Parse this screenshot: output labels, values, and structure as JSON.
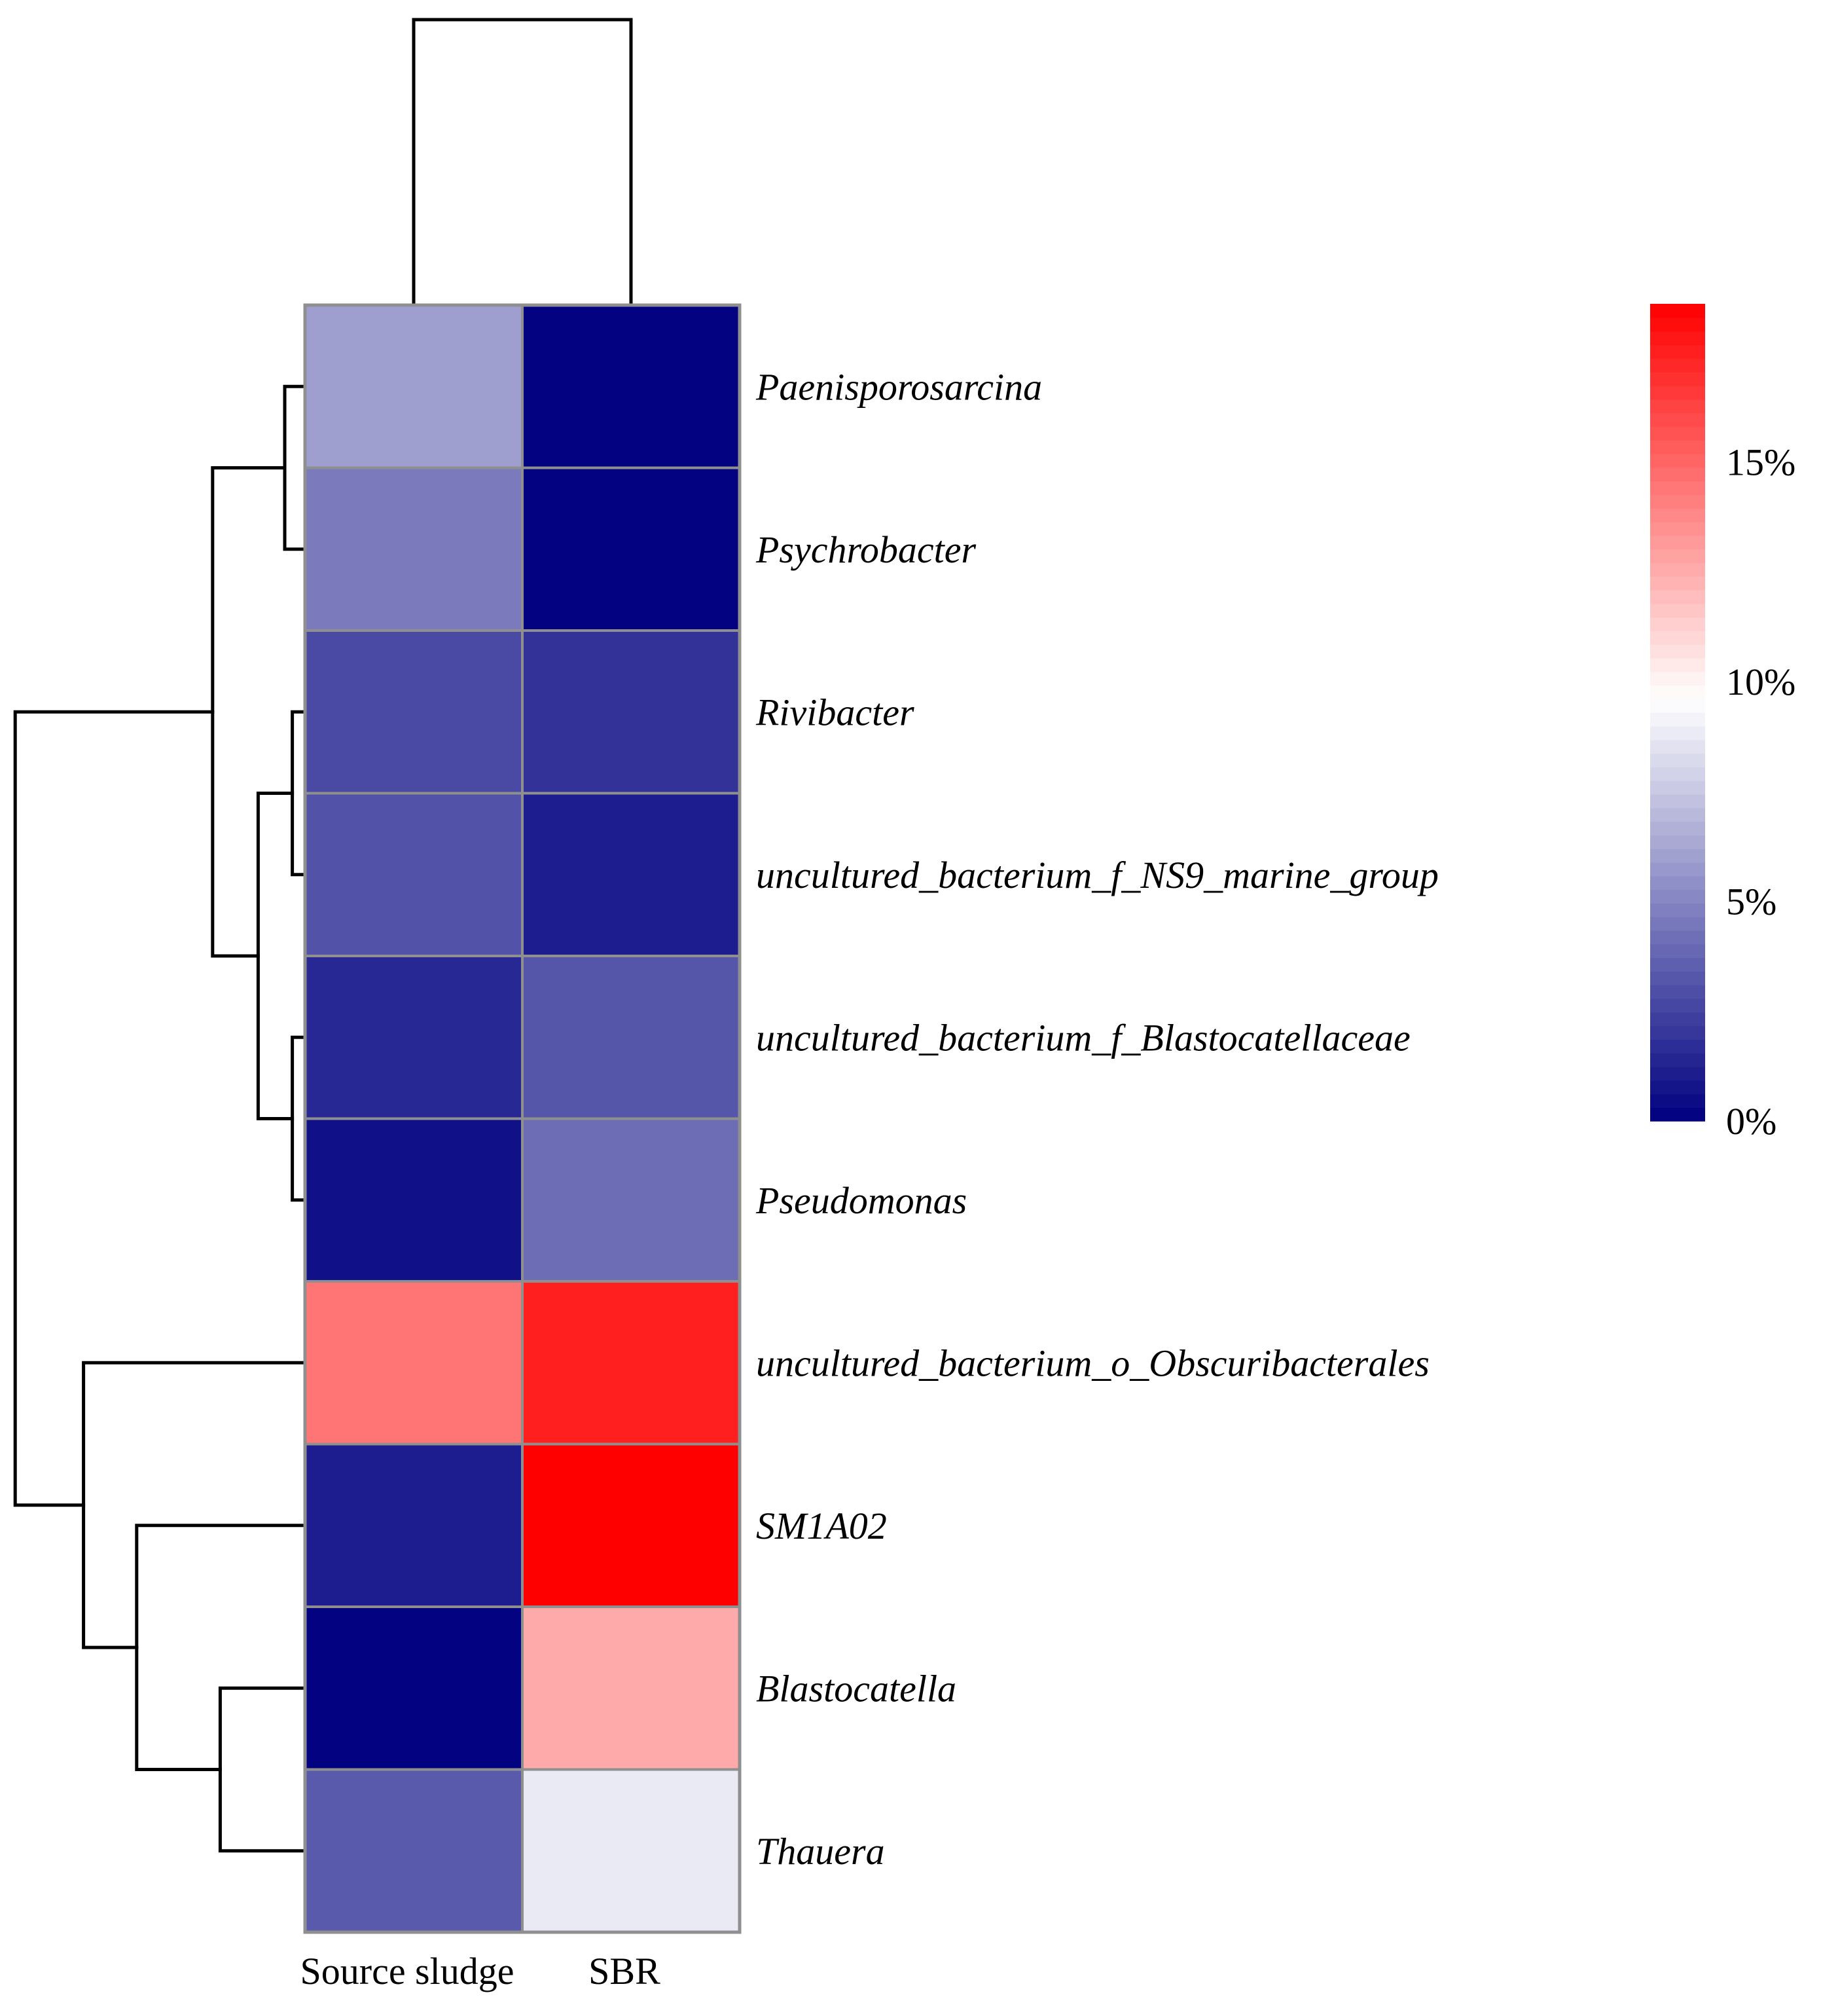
{
  "chart_data": {
    "type": "heatmap",
    "title": "",
    "columns": [
      "Source sludge",
      "SBR"
    ],
    "rows": [
      "Paenisporosarcina",
      "Psychrobacter",
      "Rivibacter",
      "uncultured_bacterium_f_NS9_marine_group",
      "uncultured_bacterium_f_Blastocatellaceae",
      "Pseudomonas",
      "uncultured_bacterium_o_Obscuribacterales",
      "SM1A02",
      "Blastocatella",
      "Thauera"
    ],
    "values": [
      [
        6.0,
        0.1
      ],
      [
        4.6,
        0.1
      ],
      [
        2.8,
        1.9
      ],
      [
        3.1,
        1.1
      ],
      [
        1.5,
        3.2
      ],
      [
        0.6,
        4.1
      ],
      [
        14.5,
        17.5
      ],
      [
        1.1,
        18.6
      ],
      [
        0.1,
        12.6
      ],
      [
        3.4,
        8.8
      ]
    ],
    "colorbar": {
      "min": 0,
      "max": 18.6,
      "ticks": [
        0,
        5,
        10,
        15
      ],
      "tick_labels": [
        "0%",
        "5%",
        "10%",
        "15%"
      ],
      "colors": {
        "low": "#000080",
        "mid": "#ffffff",
        "high": "#ff0000"
      },
      "mid_value": 9.6
    },
    "row_dendrogram": [
      [
        "Paenisporosarcina",
        "Psychrobacter",
        0.25
      ],
      [
        "Rivibacter",
        "uncultured_bacterium_f_NS9_marine_group",
        0.15
      ],
      [
        "uncultured_bacterium_f_Blastocatellaceae",
        "Pseudomonas",
        0.15
      ],
      [
        "C2",
        "C3",
        0.6
      ],
      [
        "C1",
        "C4",
        1.2
      ],
      [
        "Blastocatella",
        "Thauera",
        1.1
      ],
      [
        "SM1A02",
        "C6",
        2.2
      ],
      [
        "uncultured_bacterium_o_Obscuribacterales",
        "C7",
        2.9
      ],
      [
        "C5",
        "C8",
        3.8
      ]
    ],
    "column_dendrogram": [
      [
        "Source sludge",
        "SBR",
        1.0
      ]
    ]
  }
}
